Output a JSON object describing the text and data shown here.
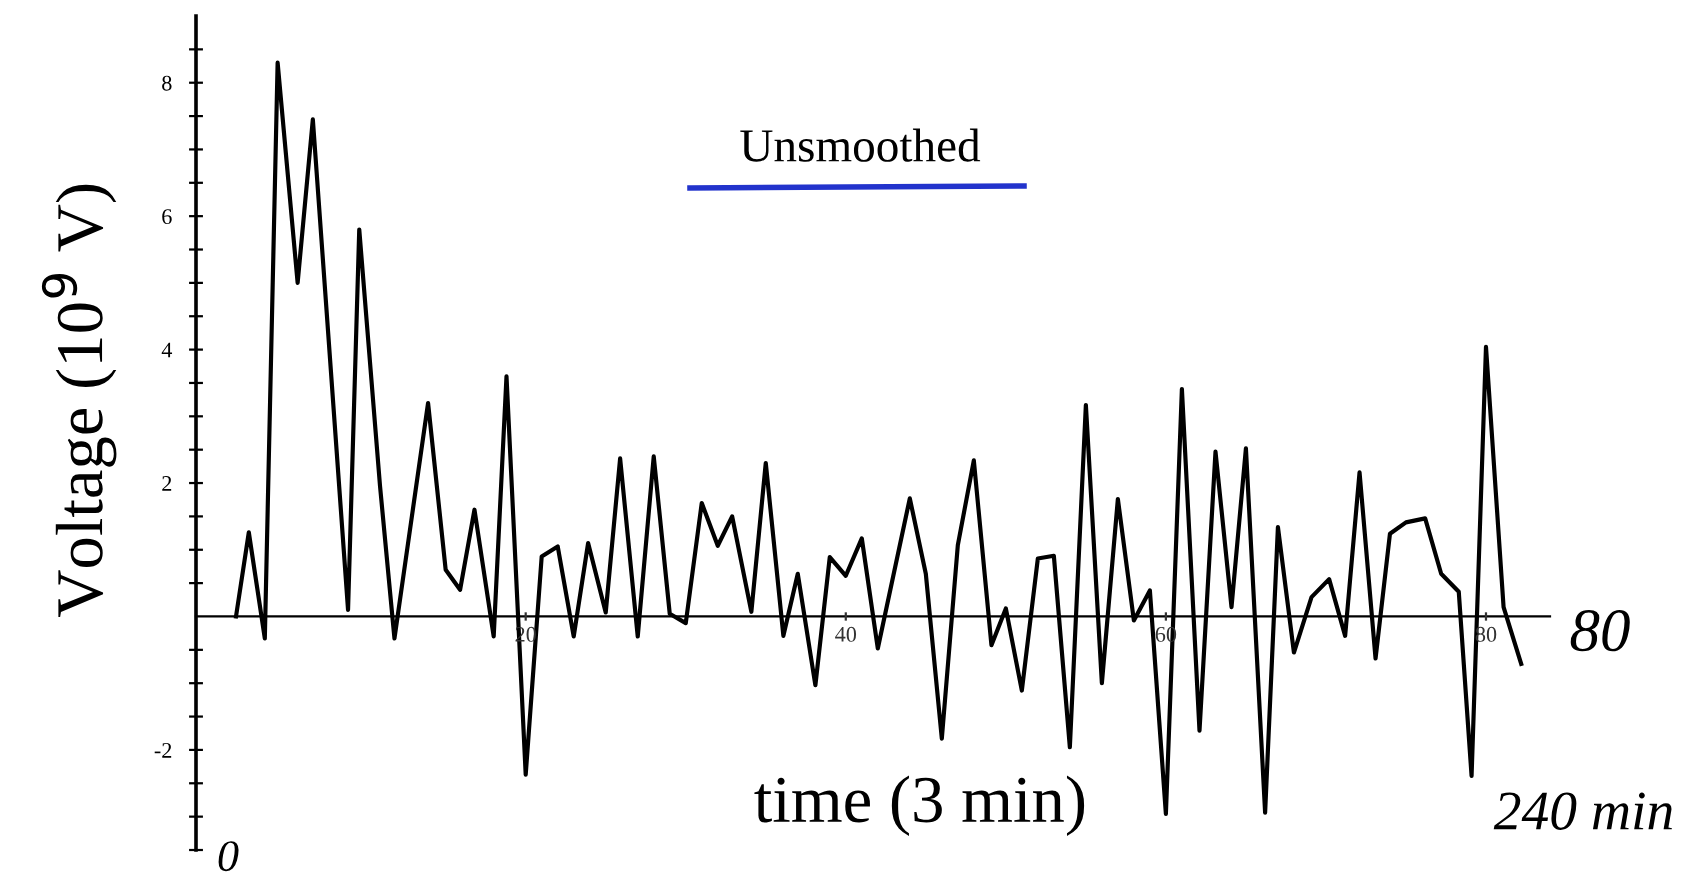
{
  "chart_data": {
    "type": "line",
    "title": "Unsmoothed",
    "xlabel": "time (3 min)",
    "ylabel": "Voltage (10$^{9}$ V)",
    "annotations": [
      "80",
      "240 min",
      "0"
    ],
    "series": [
      {
        "color": "#000000",
        "x": [
          1.9,
          2.7,
          3.7,
          4.5,
          5.75,
          6.7,
          8.9,
          9.6,
          10.9,
          11.8,
          13.9,
          15,
          15.9,
          16.8,
          18,
          18.8,
          20,
          21,
          22,
          23,
          23.9,
          25,
          25.9,
          27,
          28,
          29,
          30,
          31,
          32,
          32.9,
          34.1,
          35,
          36.1,
          37,
          38.1,
          39,
          40,
          41,
          42,
          44,
          45,
          46,
          47,
          48,
          49.1,
          50,
          51,
          52,
          53,
          54,
          55,
          56,
          57,
          58,
          59,
          60,
          61,
          62.1,
          63.1,
          64.1,
          65,
          66.2,
          67,
          68,
          69.1,
          70.2,
          71.2,
          72.1,
          73.1,
          74,
          75,
          76.2,
          77.2,
          78.3,
          79.1,
          80,
          81.1,
          82.2
        ],
        "values": [
          0,
          1.26,
          -0.33,
          8.3,
          5.0,
          7.45,
          0.1,
          5.8,
          1.95,
          -0.33,
          3.2,
          0.7,
          0.4,
          1.6,
          -0.3,
          3.6,
          -2.37,
          0.9,
          1.05,
          -0.3,
          1.1,
          0.06,
          2.37,
          -0.3,
          2.4,
          0.04,
          -0.1,
          1.7,
          1.06,
          1.5,
          0.07,
          2.3,
          -0.29,
          0.64,
          -1.03,
          0.89,
          0.61,
          1.17,
          -0.48,
          1.77,
          0.64,
          -1.83,
          1.07,
          2.34,
          -0.43,
          0.12,
          -1.11,
          0.87,
          0.91,
          -1.96,
          3.17,
          -1.0,
          1.76,
          -0.06,
          0.39,
          -2.96,
          3.41,
          -1.71,
          2.47,
          0.14,
          2.52,
          -2.94,
          1.34,
          -0.54,
          0.29,
          0.56,
          -0.29,
          2.16,
          -0.63,
          1.24,
          1.41,
          1.47,
          0.64,
          0.37,
          -2.39,
          4.04,
          0.14,
          -0.71
        ]
      }
    ],
    "xlim": [
      -0.6,
      84
    ],
    "ylim": [
      -3.5,
      9
    ],
    "xticks": [
      20,
      40,
      60,
      80
    ],
    "yticks": [
      {
        "value": -3.5,
        "label": null
      },
      {
        "value": -3,
        "label": null
      },
      {
        "value": -2.5,
        "label": null
      },
      -2,
      {
        "value": -1.5,
        "label": null
      },
      {
        "value": -1,
        "label": null
      },
      {
        "value": -0.5,
        "label": null
      },
      {
        "value": 0.5,
        "label": null
      },
      {
        "value": 1,
        "label": null
      },
      {
        "value": 1.5,
        "label": null
      },
      2,
      {
        "value": 2.5,
        "label": null
      },
      {
        "value": 3,
        "label": null
      },
      {
        "value": 3.5,
        "label": null
      },
      4,
      {
        "value": 4.5,
        "label": null
      },
      {
        "value": 5,
        "label": null
      },
      {
        "value": 5.5,
        "label": null
      },
      6,
      {
        "value": 6.5,
        "label": null
      },
      {
        "value": 7,
        "label": null
      },
      {
        "value": 7.5,
        "label": null
      },
      8,
      {
        "value": 8.5,
        "label": null
      }
    ],
    "grid": false,
    "marker": "none",
    "line_style": "solid"
  }
}
